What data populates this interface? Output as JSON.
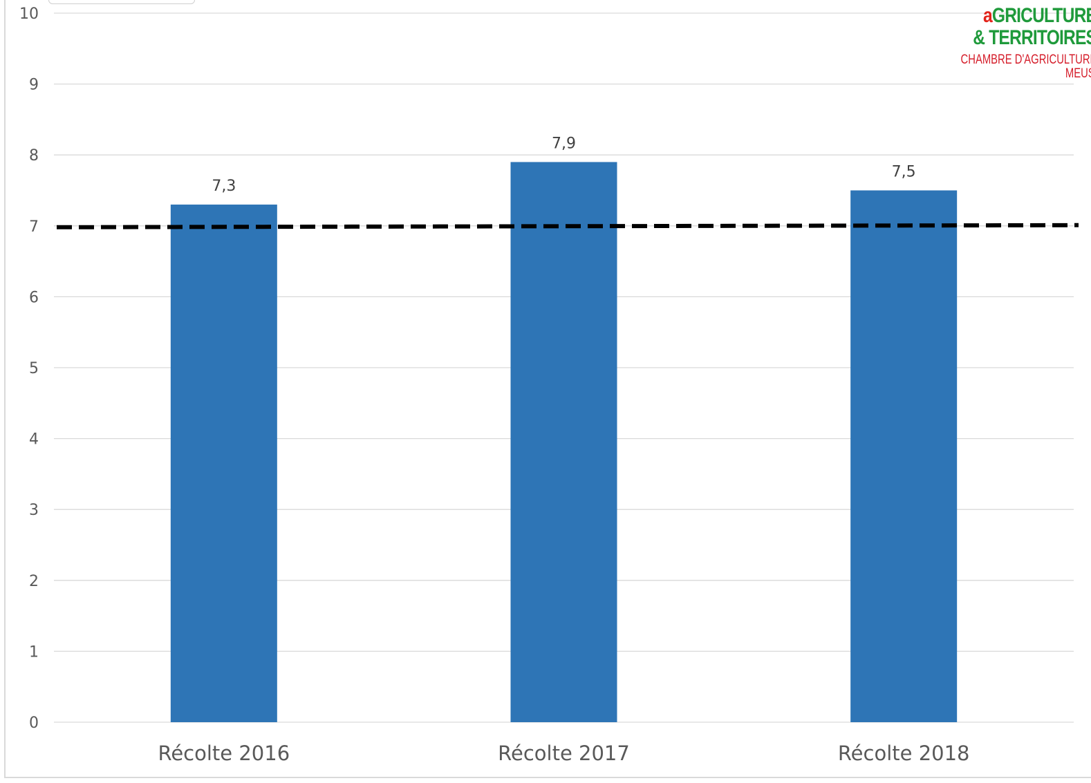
{
  "chart_data": {
    "type": "bar",
    "categories": [
      "Récolte 2016",
      "Récolte 2017",
      "Récolte 2018"
    ],
    "values": [
      7.3,
      7.9,
      7.5
    ],
    "data_labels": [
      "7,3",
      "7,9",
      "7,5"
    ],
    "reference_line": {
      "value": 7,
      "style": "dashed",
      "color": "#000000"
    },
    "ylim": [
      0,
      10
    ],
    "yticks": [
      0,
      1,
      2,
      3,
      4,
      5,
      6,
      7,
      8,
      9,
      10
    ],
    "grid": true,
    "legend": "none",
    "title": "",
    "xlabel": "",
    "ylabel": "",
    "bar_color": "#2e75b6",
    "grid_color": "#d9d9d9",
    "tick_color": "#595959"
  },
  "logo": {
    "line1_initial": "a",
    "line1_rest": "GRICULTURE",
    "line2": "& TERRITOIRES",
    "line3": "CHAMBRE D'AGRICULTURE",
    "line4": "MEUSE",
    "green": "#1f9a3b",
    "red": "#d51d2a"
  }
}
